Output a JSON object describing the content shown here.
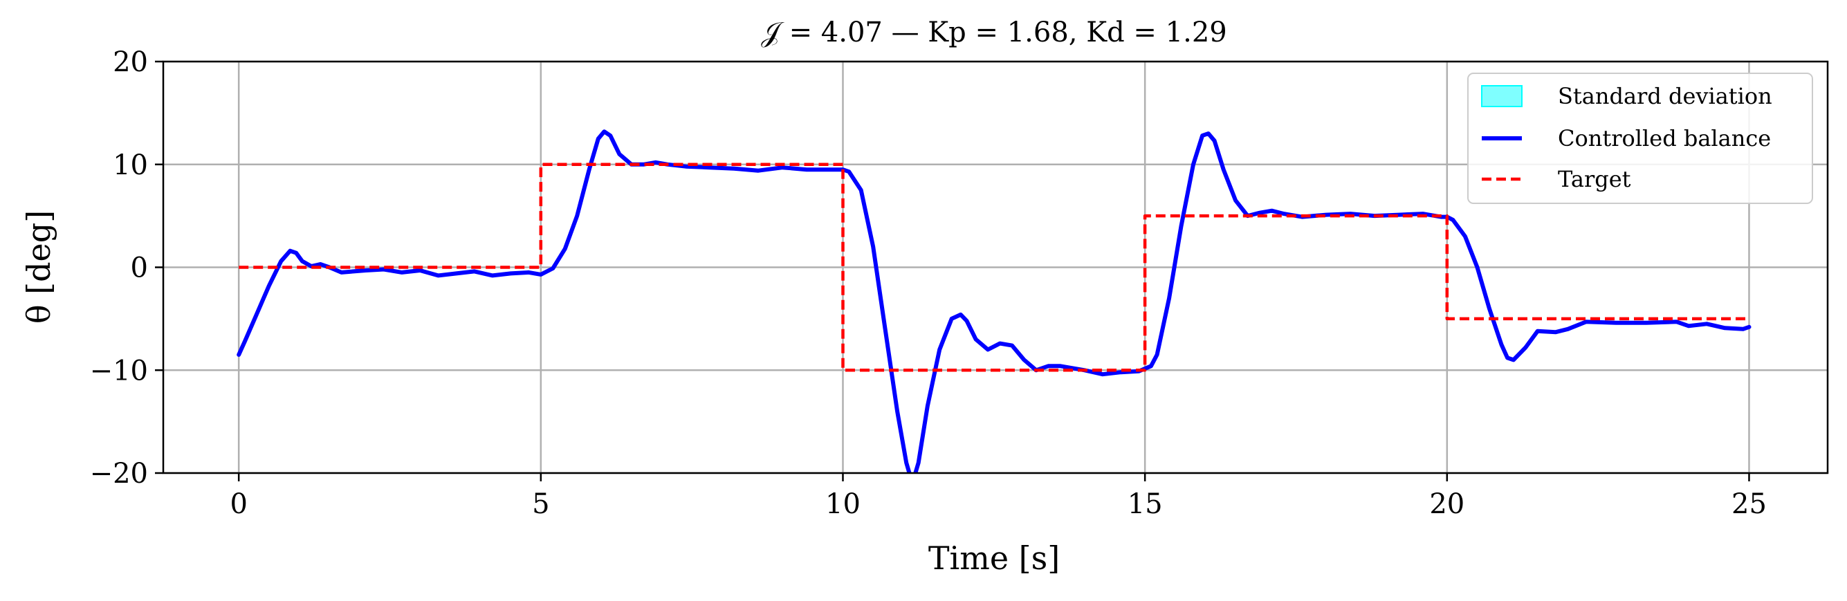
{
  "chart_data": {
    "type": "line",
    "title": "𝒥 = 4.07 — Kp = 1.68, Kd = 1.29",
    "xlabel": "Time [s]",
    "ylabel": "θ [deg]",
    "xlim": [
      -1.25,
      26.3
    ],
    "ylim": [
      -20,
      20
    ],
    "xticks": [
      0,
      5,
      10,
      15,
      20,
      25
    ],
    "yticks": [
      -20,
      -10,
      0,
      10,
      20
    ],
    "xtick_labels": [
      "0",
      "5",
      "10",
      "15",
      "20",
      "25"
    ],
    "ytick_labels": [
      "−20",
      "−10",
      "0",
      "10",
      "20"
    ],
    "grid": true,
    "legend_position": "top-right",
    "series": [
      {
        "name": "Standard deviation",
        "kind": "band",
        "color": "#00ffff",
        "lower": [],
        "upper": []
      },
      {
        "name": "Controlled balance",
        "kind": "line",
        "color": "#0000ff",
        "style": "solid",
        "x": [
          0,
          0.1,
          0.3,
          0.5,
          0.7,
          0.85,
          0.95,
          1.05,
          1.2,
          1.35,
          1.5,
          1.7,
          1.9,
          2.1,
          2.4,
          2.7,
          3.0,
          3.3,
          3.6,
          3.9,
          4.2,
          4.5,
          4.8,
          5.0,
          5.2,
          5.4,
          5.6,
          5.8,
          5.95,
          6.05,
          6.15,
          6.3,
          6.5,
          6.7,
          6.9,
          7.1,
          7.4,
          7.8,
          8.2,
          8.6,
          9.0,
          9.4,
          9.8,
          10.0,
          10.1,
          10.3,
          10.5,
          10.7,
          10.9,
          11.05,
          11.15,
          11.25,
          11.4,
          11.6,
          11.8,
          11.95,
          12.05,
          12.2,
          12.4,
          12.6,
          12.8,
          13.0,
          13.2,
          13.4,
          13.6,
          13.8,
          14.0,
          14.3,
          14.6,
          14.9,
          15.1,
          15.2,
          15.4,
          15.6,
          15.8,
          15.95,
          16.05,
          16.15,
          16.3,
          16.5,
          16.7,
          16.9,
          17.1,
          17.3,
          17.6,
          18.0,
          18.4,
          18.8,
          19.2,
          19.6,
          19.9,
          20.0,
          20.1,
          20.3,
          20.5,
          20.7,
          20.9,
          21.0,
          21.1,
          21.3,
          21.5,
          21.8,
          22.0,
          22.3,
          22.8,
          23.3,
          23.8,
          24.0,
          24.3,
          24.6,
          24.9,
          25.0
        ],
        "y": [
          -8.5,
          -7.2,
          -4.5,
          -1.8,
          0.6,
          1.6,
          1.4,
          0.6,
          0.1,
          0.3,
          0.0,
          -0.5,
          -0.4,
          -0.3,
          -0.2,
          -0.5,
          -0.3,
          -0.8,
          -0.6,
          -0.4,
          -0.8,
          -0.6,
          -0.5,
          -0.7,
          -0.1,
          1.8,
          5.0,
          9.5,
          12.5,
          13.2,
          12.8,
          11.0,
          10.0,
          10.0,
          10.2,
          10.0,
          9.8,
          9.7,
          9.6,
          9.4,
          9.7,
          9.5,
          9.5,
          9.5,
          9.3,
          7.5,
          2.0,
          -6.0,
          -14.0,
          -19.0,
          -21.0,
          -19.0,
          -13.5,
          -8.0,
          -5.0,
          -4.6,
          -5.2,
          -7.0,
          -8.0,
          -7.4,
          -7.6,
          -9.0,
          -10.0,
          -9.6,
          -9.6,
          -9.8,
          -10.0,
          -10.4,
          -10.2,
          -10.1,
          -9.6,
          -8.5,
          -3.0,
          4.0,
          10.0,
          12.8,
          13.0,
          12.3,
          9.5,
          6.5,
          5.0,
          5.3,
          5.5,
          5.2,
          4.9,
          5.1,
          5.2,
          5.0,
          5.1,
          5.2,
          4.9,
          4.9,
          4.6,
          3.0,
          0.0,
          -4.0,
          -7.5,
          -8.8,
          -9.0,
          -7.8,
          -6.2,
          -6.3,
          -6.0,
          -5.3,
          -5.4,
          -5.4,
          -5.3,
          -5.7,
          -5.5,
          -5.9,
          -6.0,
          -5.8
        ]
      },
      {
        "name": "Target",
        "kind": "line",
        "color": "#ff0000",
        "style": "dashed",
        "x": [
          0,
          5,
          5,
          10,
          10,
          15,
          15,
          20,
          20,
          25
        ],
        "y": [
          0,
          0,
          10,
          10,
          -10,
          -10,
          5,
          5,
          -5,
          -5
        ]
      }
    ]
  }
}
